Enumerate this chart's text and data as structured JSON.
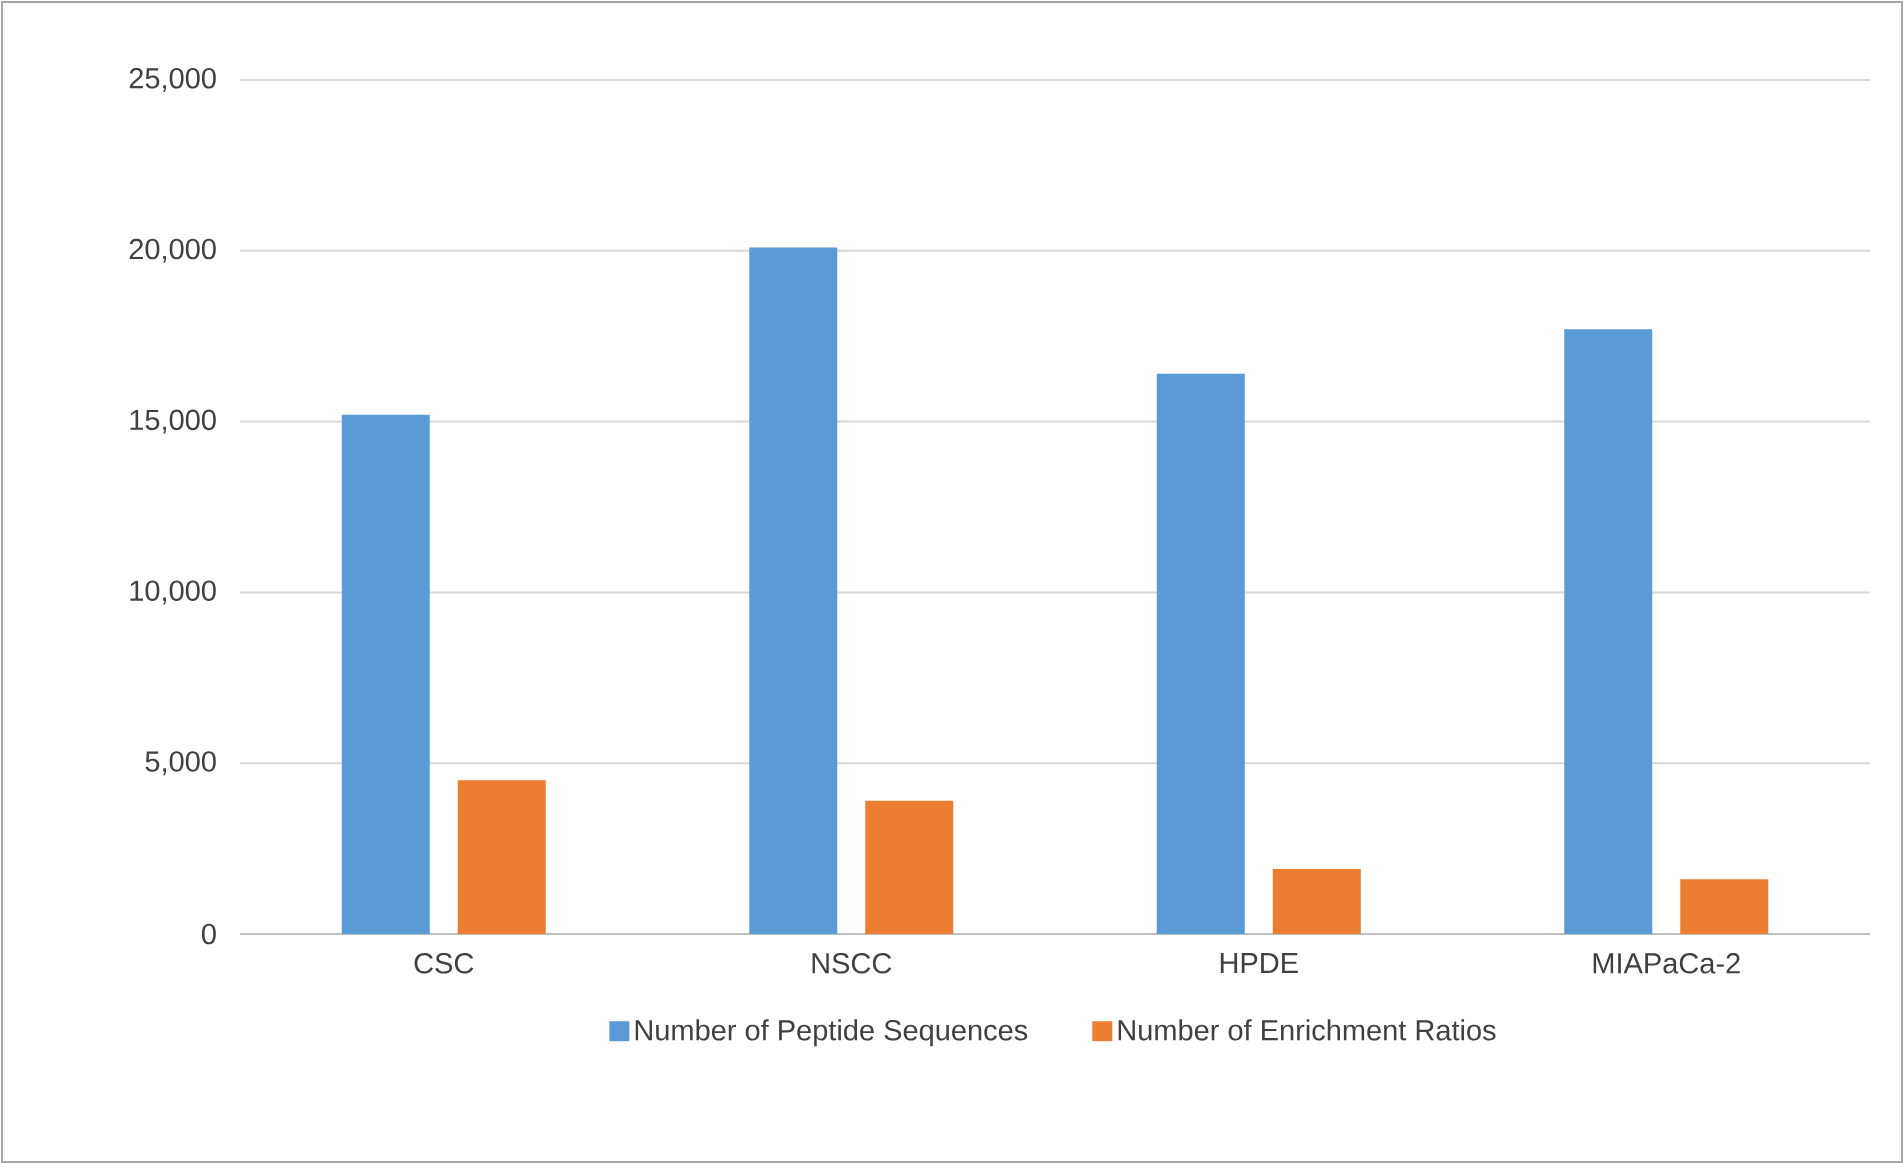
{
  "chart_data": {
    "type": "bar",
    "categories": [
      "CSC",
      "NSCC",
      "HPDE",
      "MIAPaCa-2"
    ],
    "series": [
      {
        "name": "Number of Peptide Sequences",
        "color": "#5b9bd5",
        "values": [
          15200,
          20100,
          16400,
          17700
        ]
      },
      {
        "name": "Number of Enrichment Ratios",
        "color": "#ed7d31",
        "values": [
          4500,
          3900,
          1900,
          1600
        ]
      }
    ],
    "ylim": [
      0,
      25000
    ],
    "yticks": [
      0,
      {
        "value": 5000,
        "label": "5,000"
      },
      {
        "value": 10000,
        "label": "10,000"
      },
      {
        "value": 15000,
        "label": "15,000"
      },
      {
        "value": 20000,
        "label": "20,000"
      },
      {
        "value": 25000,
        "label": "25,000"
      }
    ],
    "grid": "y",
    "legend": "bottom"
  }
}
